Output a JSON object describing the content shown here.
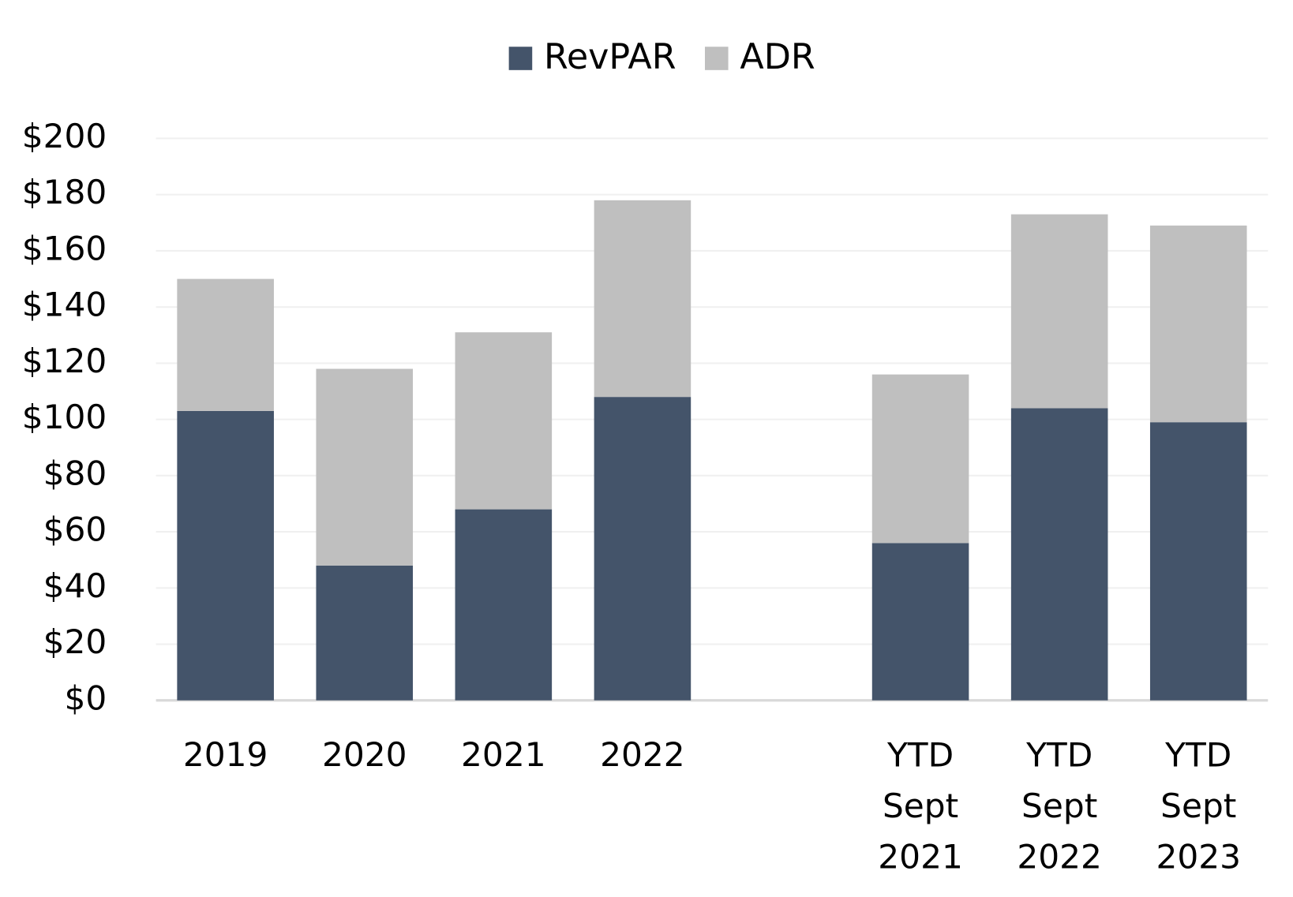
{
  "chart_data": {
    "type": "stacked_bar",
    "categories": [
      "2019",
      "2020",
      "2021",
      "2022",
      null,
      "YTD Sept 2021",
      "YTD Sept 2022",
      "YTD Sept 2023"
    ],
    "series": [
      {
        "name": "RevPAR",
        "color": "#44546a",
        "values": [
          103,
          48,
          68,
          108,
          null,
          56,
          104,
          99
        ]
      },
      {
        "name": "ADR",
        "color": "#bfbfbf",
        "values": [
          47,
          70,
          63,
          70,
          null,
          60,
          69,
          70
        ]
      }
    ],
    "ylim": [
      0,
      200
    ],
    "yticks": [
      {
        "value": 0,
        "label": "$0"
      },
      {
        "value": 20,
        "label": "$20"
      },
      {
        "value": 40,
        "label": "$40"
      },
      {
        "value": 60,
        "label": "$60"
      },
      {
        "value": 80,
        "label": "$80"
      },
      {
        "value": 100,
        "label": "$100"
      },
      {
        "value": 120,
        "label": "$120"
      },
      {
        "value": 140,
        "label": "$140"
      },
      {
        "value": 160,
        "label": "$160"
      },
      {
        "value": 180,
        "label": "$180"
      },
      {
        "value": 200,
        "label": "$200"
      }
    ],
    "grid": true,
    "legend": "top"
  }
}
